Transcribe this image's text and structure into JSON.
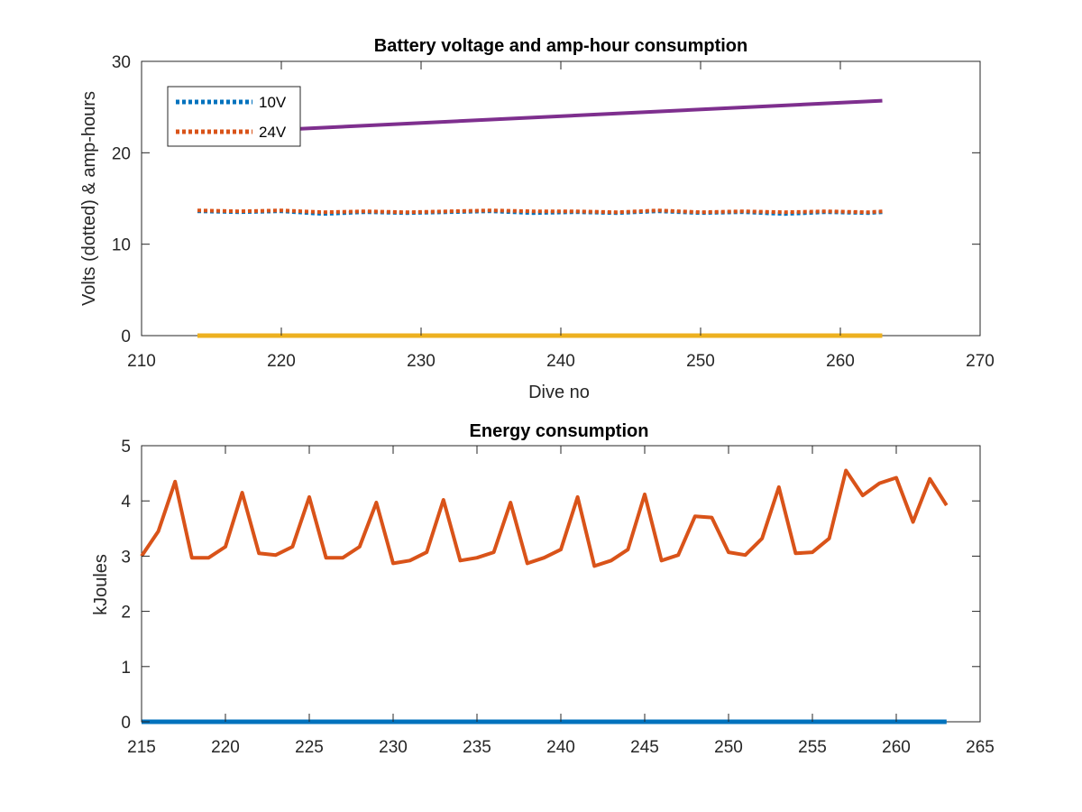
{
  "chart_data": [
    {
      "type": "line",
      "title": "Battery voltage and amp-hour consumption",
      "xlabel": "Dive no",
      "ylabel": "Volts (dotted) & amp-hours",
      "xlim": [
        210,
        270
      ],
      "ylim": [
        0,
        30
      ],
      "xticks": [
        210,
        220,
        230,
        240,
        250,
        260,
        270
      ],
      "yticks": [
        0,
        10,
        20,
        30
      ],
      "grid": false,
      "legend_position": "top-left",
      "legend": [
        {
          "label": "10V",
          "color": "#0072bd",
          "style": "dotted"
        },
        {
          "label": "24V",
          "color": "#d95319",
          "style": "dotted"
        }
      ],
      "series": [
        {
          "name": "10V",
          "color": "#0072bd",
          "style": "dotted",
          "x": [
            214,
            217,
            220,
            223,
            226,
            229,
            232,
            235,
            238,
            241,
            244,
            247,
            250,
            253,
            256,
            259,
            262,
            263
          ],
          "y": [
            13.6,
            13.5,
            13.6,
            13.3,
            13.5,
            13.4,
            13.5,
            13.6,
            13.4,
            13.5,
            13.4,
            13.6,
            13.4,
            13.5,
            13.3,
            13.5,
            13.4,
            13.5
          ]
        },
        {
          "name": "24V",
          "color": "#d95319",
          "style": "dotted",
          "x": [
            214,
            217,
            220,
            223,
            226,
            229,
            232,
            235,
            238,
            241,
            244,
            247,
            250,
            253,
            256,
            259,
            262,
            263
          ],
          "y": [
            13.7,
            13.6,
            13.7,
            13.5,
            13.6,
            13.5,
            13.6,
            13.7,
            13.6,
            13.6,
            13.5,
            13.7,
            13.5,
            13.6,
            13.5,
            13.6,
            13.5,
            13.6
          ]
        },
        {
          "color": "#7e2f8e",
          "style": "solid",
          "x": [
            221,
            263
          ],
          "y": [
            22.6,
            25.7
          ]
        },
        {
          "color": "#edb120",
          "style": "solid",
          "x": [
            214,
            263
          ],
          "y": [
            0,
            0
          ]
        }
      ]
    },
    {
      "type": "line",
      "title": "Energy consumption",
      "xlabel": "",
      "ylabel": "kJoules",
      "xlim": [
        215,
        265
      ],
      "ylim": [
        0,
        5
      ],
      "xticks": [
        215,
        220,
        225,
        230,
        235,
        240,
        245,
        250,
        255,
        260,
        265
      ],
      "yticks": [
        0,
        1,
        2,
        3,
        4,
        5
      ],
      "grid": false,
      "series": [
        {
          "color": "#d95319",
          "style": "solid",
          "x": [
            215,
            216,
            217,
            218,
            219,
            220,
            221,
            222,
            223,
            224,
            225,
            226,
            227,
            228,
            229,
            230,
            231,
            232,
            233,
            234,
            235,
            236,
            237,
            238,
            239,
            240,
            241,
            242,
            243,
            244,
            245,
            246,
            247,
            248,
            249,
            250,
            251,
            252,
            253,
            254,
            255,
            256,
            257,
            258,
            259,
            260,
            261,
            262,
            263
          ],
          "y": [
            3.0,
            3.45,
            4.35,
            2.97,
            2.97,
            3.17,
            4.15,
            3.05,
            3.02,
            3.17,
            4.07,
            2.97,
            2.97,
            3.17,
            3.97,
            2.87,
            2.92,
            3.07,
            4.02,
            2.92,
            2.97,
            3.07,
            3.97,
            2.87,
            2.97,
            3.12,
            4.07,
            2.82,
            2.92,
            3.12,
            4.12,
            2.92,
            3.02,
            3.72,
            3.7,
            3.07,
            3.02,
            3.32,
            4.25,
            3.05,
            3.07,
            3.32,
            4.55,
            4.1,
            4.32,
            4.42,
            3.62,
            4.4,
            3.92
          ]
        },
        {
          "color": "#0072bd",
          "style": "solid",
          "x": [
            215,
            263
          ],
          "y": [
            0,
            0
          ]
        }
      ]
    }
  ]
}
